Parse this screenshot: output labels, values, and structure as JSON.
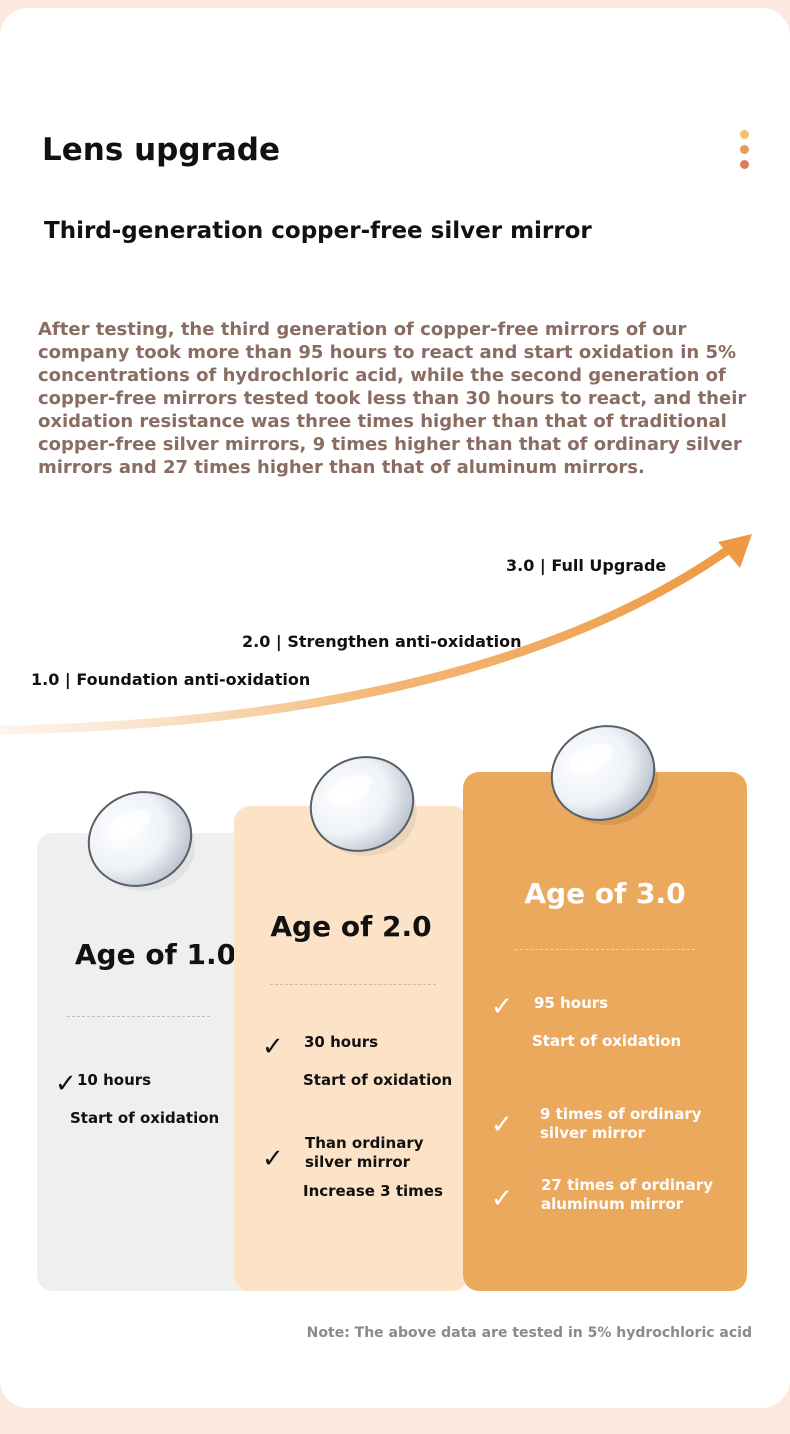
{
  "heading": "Lens upgrade",
  "subheading": "Third-generation copper-free silver mirror",
  "description": "After testing, the third generation of copper-free mirrors of our company took more than 95 hours to react and start oxidation in 5% concentrations of hydrochloric acid, while the second generation of copper-free mirrors tested took less than 30 hours to react, and their oxidation resistance was three times higher than that of traditional copper-free silver mirrors, 9 times higher than that of ordinary silver mirrors and 27 times higher than that of aluminum mirrors.",
  "stages": {
    "s1": "1.0 | Foundation anti-oxidation",
    "s2": "2.0 | Strengthen anti-oxidation",
    "s3": "3.0 | Full Upgrade"
  },
  "panels": {
    "p1": {
      "title": "Age of 1.0",
      "item1_main": "10 hours",
      "item1_sub": "Start of oxidation"
    },
    "p2": {
      "title": "Age of 2.0",
      "item1_main": "30 hours",
      "item1_sub": "Start of oxidation",
      "item2_main": "Than ordinary silver mirror",
      "item2_sub": "Increase 3 times"
    },
    "p3": {
      "title": "Age of 3.0",
      "item1_main": "95 hours",
      "item1_sub": "Start of oxidation",
      "item2_main": "9 times of ordinary silver mirror",
      "item3_main": "27 times of ordinary aluminum mirror"
    }
  },
  "check_glyph": "✓",
  "note": "Note: The above data are tested in 5% hydrochloric acid",
  "colors": {
    "panel1": "#efefef",
    "panel2": "#fce3c8",
    "panel3": "#eba95e",
    "accent": "#f0a04b",
    "desc_text": "#8a6d62",
    "dot1": "#f1c070",
    "dot2": "#ea9b58",
    "dot3": "#e07a5c"
  }
}
